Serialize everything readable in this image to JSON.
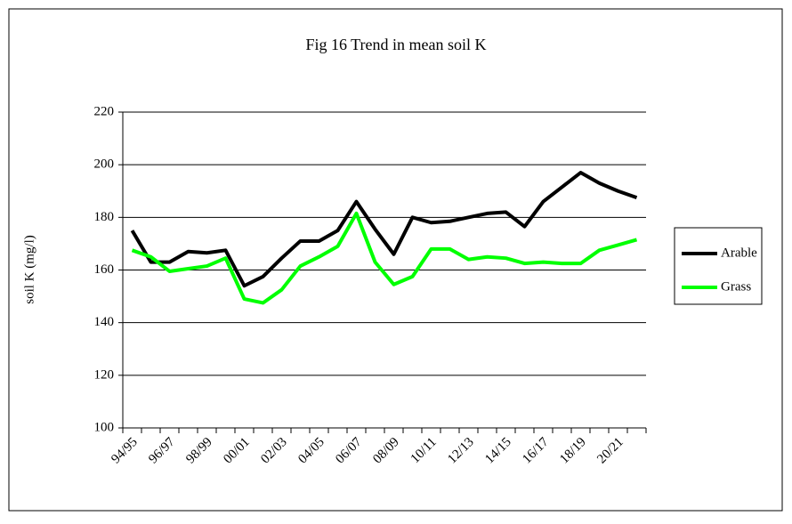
{
  "chart_data": {
    "type": "line",
    "title": "Fig 16 Trend in mean soil K",
    "y_label": "soil K (mg/l)",
    "categories": [
      "94/95",
      null,
      "96/97",
      null,
      "98/99",
      null,
      "00/01",
      null,
      "02/03",
      null,
      "04/05",
      null,
      "06/07",
      null,
      "08/09",
      null,
      "10/11",
      null,
      "12/13",
      null,
      "14/15",
      null,
      "16/17",
      null,
      "18/19",
      null,
      "20/21",
      null
    ],
    "series": [
      {
        "name": "Arable",
        "color": "#000000",
        "values": [
          175,
          163,
          163,
          167,
          166.5,
          167.5,
          154,
          157.5,
          164.5,
          171,
          171,
          175,
          186,
          175.5,
          166,
          180,
          178,
          178.5,
          180,
          181.5,
          182,
          176.5,
          186,
          191.5,
          197,
          193,
          190,
          187.5
        ]
      },
      {
        "name": "Grass",
        "color": "#00ff00",
        "values": [
          167.5,
          165,
          159.5,
          160.5,
          161.5,
          164.5,
          149,
          147.5,
          152.5,
          161.5,
          165,
          169,
          181.5,
          163,
          154.5,
          157.5,
          168,
          168,
          164,
          165,
          164.5,
          162.5,
          163,
          162.5,
          162.5,
          167.5,
          169.5,
          171.5
        ]
      }
    ],
    "ylim": [
      100,
      220
    ],
    "yticks": [
      100,
      120,
      140,
      160,
      180,
      200,
      220
    ],
    "grid": true,
    "legend": "right"
  }
}
